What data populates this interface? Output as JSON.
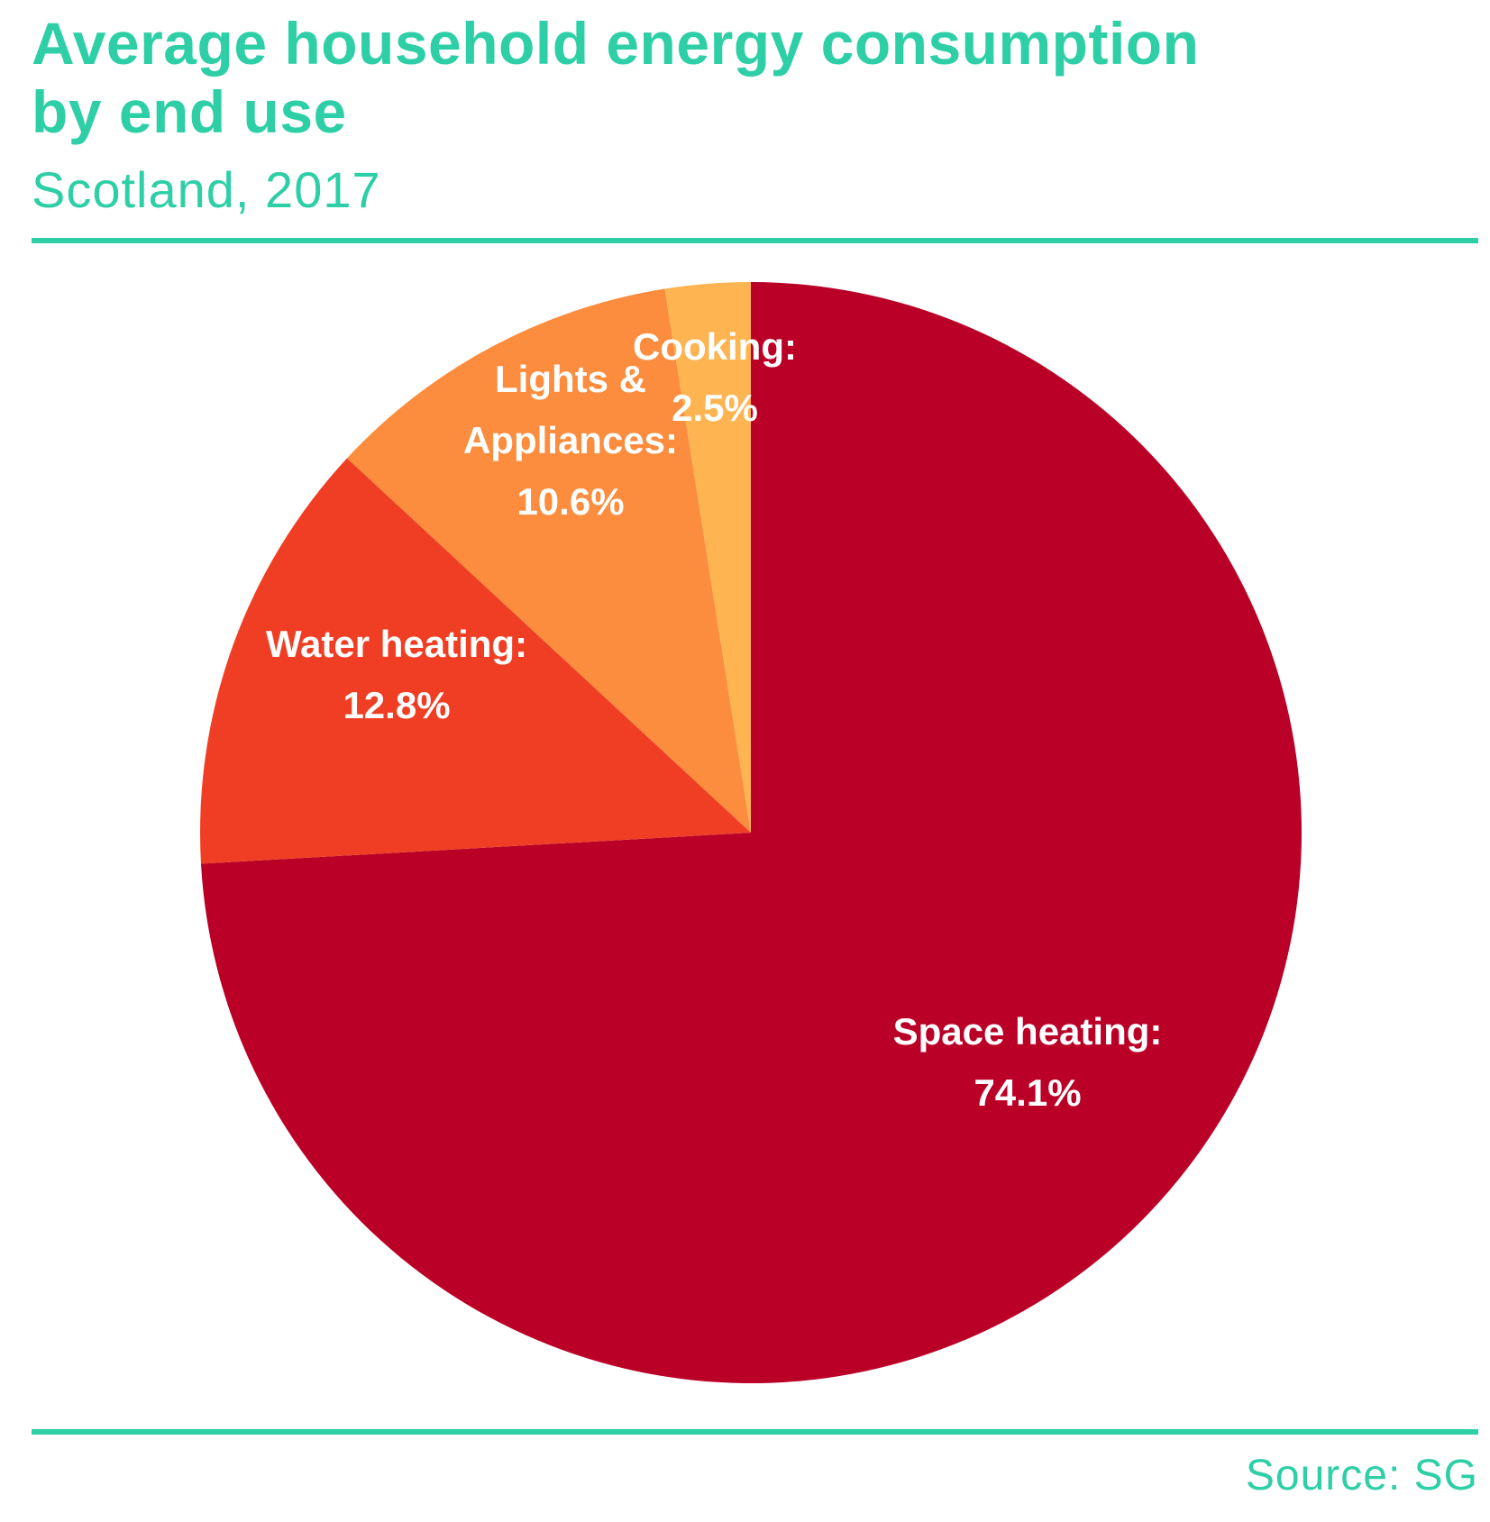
{
  "header": {
    "title": "Average household energy consumption\nby end use",
    "subtitle": "Scotland, 2017"
  },
  "footer": {
    "source": "Source: SG"
  },
  "colors": {
    "accent": "#2ecfa6",
    "label_text": "#ffffff"
  },
  "chart_data": {
    "type": "pie",
    "title": "Average household energy consumption by end use",
    "subtitle": "Scotland, 2017",
    "start": "12 o'clock",
    "direction": "clockwise",
    "slices": [
      {
        "label_lines": [
          "Space heating:",
          "74.1%"
        ],
        "value": 74.1,
        "color": "#bb0028"
      },
      {
        "label_lines": [
          "Water heating:",
          "12.8%"
        ],
        "value": 12.8,
        "color": "#ef3e24"
      },
      {
        "label_lines": [
          "Lights &",
          "Appliances:",
          "10.6%"
        ],
        "value": 10.6,
        "color": "#fc8c3e"
      },
      {
        "label_lines": [
          "Cooking:",
          "2.5%"
        ],
        "value": 2.5,
        "color": "#fdb451"
      }
    ]
  }
}
